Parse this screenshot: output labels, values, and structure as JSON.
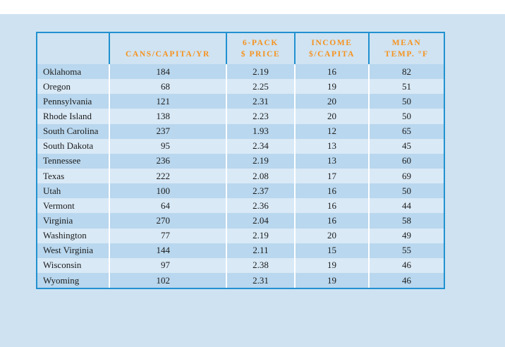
{
  "chart_data": {
    "type": "table",
    "title": "",
    "columns": [
      "",
      "CANS/CAPITA/YR",
      "6-PACK $ PRICE",
      "INCOME $/CAPITA",
      "MEAN TEMP. °F"
    ],
    "rows": [
      [
        "Oklahoma",
        184,
        2.19,
        16,
        82
      ],
      [
        "Oregon",
        68,
        2.25,
        19,
        51
      ],
      [
        "Pennsylvania",
        121,
        2.31,
        20,
        50
      ],
      [
        "Rhode Island",
        138,
        2.23,
        20,
        50
      ],
      [
        "South Carolina",
        237,
        1.93,
        12,
        65
      ],
      [
        "South Dakota",
        95,
        2.34,
        13,
        45
      ],
      [
        "Tennessee",
        236,
        2.19,
        13,
        60
      ],
      [
        "Texas",
        222,
        2.08,
        17,
        69
      ],
      [
        "Utah",
        100,
        2.37,
        16,
        50
      ],
      [
        "Vermont",
        64,
        2.36,
        16,
        44
      ],
      [
        "Virginia",
        270,
        2.04,
        16,
        58
      ],
      [
        "Washington",
        77,
        2.19,
        20,
        49
      ],
      [
        "West Virginia",
        144,
        2.11,
        15,
        55
      ],
      [
        "Wisconsin",
        97,
        2.38,
        19,
        46
      ],
      [
        "Wyoming",
        102,
        2.31,
        19,
        46
      ]
    ]
  },
  "table": {
    "header": [
      {
        "key": "state",
        "lines": [
          ""
        ]
      },
      {
        "key": "cans",
        "lines": [
          "CANS/CAPITA/YR"
        ]
      },
      {
        "key": "price",
        "lines": [
          "6-PACK",
          "$ PRICE"
        ]
      },
      {
        "key": "income",
        "lines": [
          "INCOME",
          "$/CAPITA"
        ]
      },
      {
        "key": "temp",
        "lines": [
          "MEAN",
          "TEMP. °F"
        ]
      }
    ],
    "rows": [
      {
        "state": "Oklahoma",
        "cans": "184",
        "price": "2.19",
        "income": "16",
        "temp": "82"
      },
      {
        "state": "Oregon",
        "cans": "68",
        "price": "2.25",
        "income": "19",
        "temp": "51"
      },
      {
        "state": "Pennsylvania",
        "cans": "121",
        "price": "2.31",
        "income": "20",
        "temp": "50"
      },
      {
        "state": "Rhode Island",
        "cans": "138",
        "price": "2.23",
        "income": "20",
        "temp": "50"
      },
      {
        "state": "South Carolina",
        "cans": "237",
        "price": "1.93",
        "income": "12",
        "temp": "65"
      },
      {
        "state": "South Dakota",
        "cans": "95",
        "price": "2.34",
        "income": "13",
        "temp": "45"
      },
      {
        "state": "Tennessee",
        "cans": "236",
        "price": "2.19",
        "income": "13",
        "temp": "60"
      },
      {
        "state": "Texas",
        "cans": "222",
        "price": "2.08",
        "income": "17",
        "temp": "69"
      },
      {
        "state": "Utah",
        "cans": "100",
        "price": "2.37",
        "income": "16",
        "temp": "50"
      },
      {
        "state": "Vermont",
        "cans": "64",
        "price": "2.36",
        "income": "16",
        "temp": "44"
      },
      {
        "state": "Virginia",
        "cans": "270",
        "price": "2.04",
        "income": "16",
        "temp": "58"
      },
      {
        "state": "Washington",
        "cans": "77",
        "price": "2.19",
        "income": "20",
        "temp": "49"
      },
      {
        "state": "West Virginia",
        "cans": "144",
        "price": "2.11",
        "income": "15",
        "temp": "55"
      },
      {
        "state": "Wisconsin",
        "cans": "97",
        "price": "2.38",
        "income": "19",
        "temp": "46"
      },
      {
        "state": "Wyoming",
        "cans": "102",
        "price": "2.31",
        "income": "19",
        "temp": "46"
      }
    ]
  },
  "colors": {
    "page_background": "#cfe2f1",
    "top_band": "#ffffff",
    "table_border": "#2191d0",
    "header_text": "#f6921e",
    "header_background": "#cfe3f2",
    "row_dark": "#b9d7ee",
    "row_light": "#d9e9f6",
    "divider": "#ffffff",
    "body_text": "#1c1c1c"
  }
}
